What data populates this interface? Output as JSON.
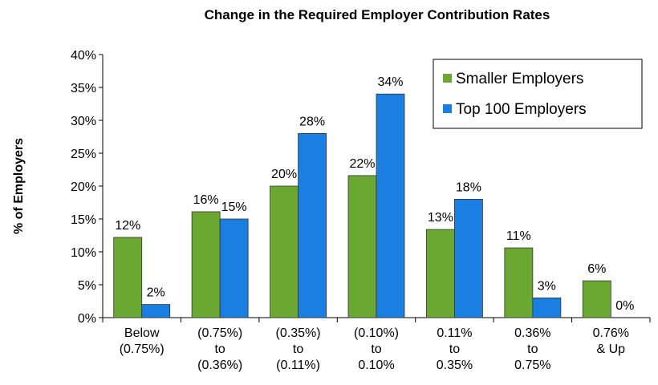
{
  "chart_data": {
    "type": "bar",
    "title": "Change in the Required Employer Contribution Rates",
    "y_label": "% of Employers",
    "categories": [
      "Below\n(0.75%)",
      "(0.75%)\nto\n(0.36%)",
      "(0.35%)\nto\n(0.11%)",
      "(0.10%)\nto\n0.10%",
      "0.11%\nto\n0.35%",
      "0.36%\nto\n0.75%",
      "0.76%\n& Up"
    ],
    "series": [
      {
        "name": "Smaller Employers",
        "color": "#6aa832",
        "values": [
          12.2,
          16.1,
          20.0,
          21.6,
          13.4,
          10.6,
          5.6
        ],
        "value_labels": [
          "12%",
          "16%",
          "20%",
          "22%",
          "13%",
          "11%",
          "6%"
        ]
      },
      {
        "name": "Top 100 Employers",
        "color": "#1a7fe0",
        "values": [
          2,
          15,
          28,
          34,
          18,
          3,
          0
        ],
        "value_labels": [
          "2%",
          "15%",
          "28%",
          "34%",
          "18%",
          "3%",
          "0%"
        ]
      }
    ],
    "ylim": [
      0,
      40
    ],
    "yticks": [
      {
        "value": 0,
        "label": "0%"
      },
      {
        "value": 5,
        "label": "5%"
      },
      {
        "value": 10,
        "label": "10%"
      },
      {
        "value": 15,
        "label": "15%"
      },
      {
        "value": 20,
        "label": "20%"
      },
      {
        "value": 25,
        "label": "25%"
      },
      {
        "value": 30,
        "label": "30%"
      },
      {
        "value": 35,
        "label": "35%"
      },
      {
        "value": 40,
        "label": "40%"
      }
    ],
    "legend": "upper right"
  }
}
